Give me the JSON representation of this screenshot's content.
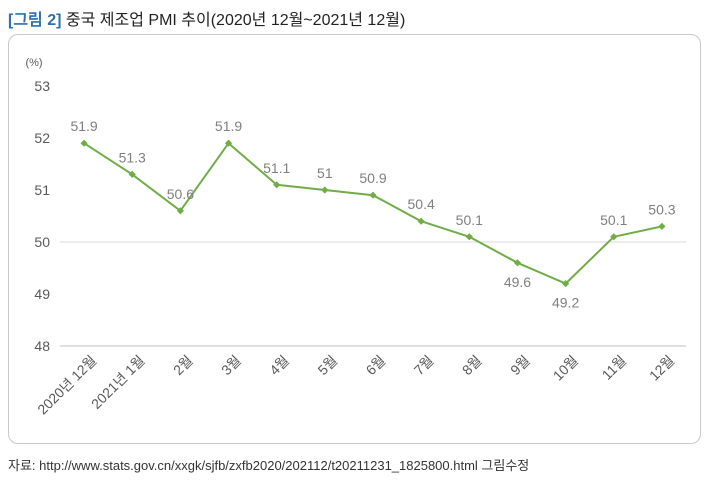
{
  "header": {
    "tag": "[그림 2]",
    "title": "중국 제조업 PMI 추이(2020년 12월~2021년 12월)"
  },
  "source": "자료: http://www.stats.gov.cn/xxgk/sjfb/zxfb2020/202112/t20211231_1825800.html 그림수정",
  "chart_data": {
    "type": "line",
    "title": "중국 제조업 PMI 추이(2020년 12월~2021년 12월)",
    "unit": "(%)",
    "categories": [
      "2020년 12월",
      "2021년 1월",
      "2월",
      "3월",
      "4월",
      "5월",
      "6월",
      "7월",
      "8월",
      "9월",
      "10월",
      "11월",
      "12월"
    ],
    "series": [
      {
        "values": [
          51.9,
          51.3,
          50.6,
          51.9,
          51.1,
          51,
          50.9,
          50.4,
          50.1,
          49.6,
          49.2,
          50.1,
          50.3
        ]
      }
    ],
    "data_labels": [
      "51.9",
      "51.3",
      "50.6",
      "51.9",
      "51.1",
      "51",
      "50.9",
      "50.4",
      "50.1",
      "49.6",
      "49.2",
      "50.1",
      "50.3"
    ],
    "label_position": [
      "above",
      "above",
      "above",
      "above",
      "above",
      "above",
      "above",
      "above",
      "above",
      "below",
      "below",
      "above",
      "above"
    ],
    "y_ticks": [
      "48",
      "49",
      "50",
      "51",
      "52",
      "53"
    ],
    "ylim": [
      48,
      53
    ],
    "gridlines": [
      "50"
    ],
    "colors": {
      "line": "#70ad47",
      "grid": "#d9d9d9",
      "axis": "#bfbfbf"
    },
    "legend": "none"
  }
}
